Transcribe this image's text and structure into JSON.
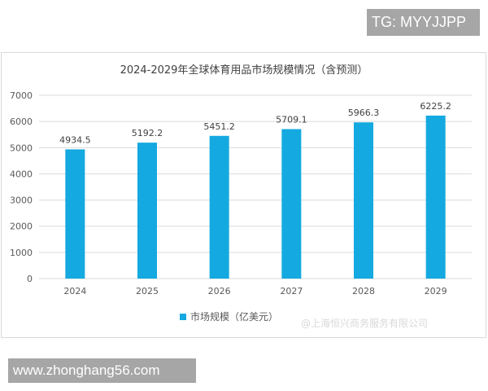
{
  "overlay_top": "TG: MYYJJPP",
  "overlay_bottom": "www.zhonghang56.com",
  "watermark": "@上海恒兴商务服务有限公司",
  "colors": {
    "bar": "#14a9e0",
    "grid": "#d9d9d9"
  },
  "chart_data": {
    "type": "bar",
    "title": "2024-2029年全球体育用品市场规模情况（含预测）",
    "categories": [
      "2024",
      "2025",
      "2026",
      "2027",
      "2028",
      "2029"
    ],
    "series": [
      {
        "name": "市场规模（亿美元）",
        "values": [
          4934.5,
          5192.2,
          5451.2,
          5709.1,
          5966.3,
          6225.2
        ]
      }
    ],
    "data_labels": [
      "4934.5",
      "5192.2",
      "5451.2",
      "5709.1",
      "5966.3",
      "6225.2"
    ],
    "yticks": [
      "0",
      "1000",
      "2000",
      "3000",
      "4000",
      "5000",
      "6000",
      "7000"
    ],
    "ylim": [
      0,
      7000
    ],
    "grid": true,
    "legend": "bottom"
  }
}
